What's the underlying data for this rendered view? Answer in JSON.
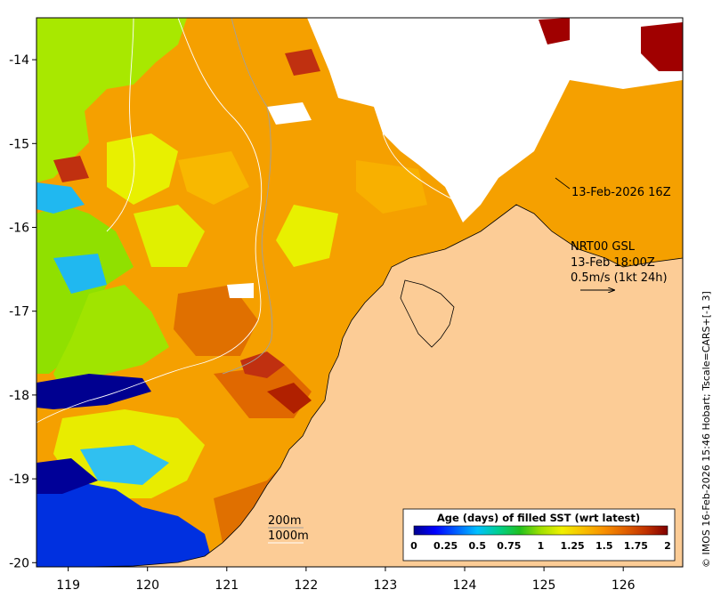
{
  "map": {
    "lon_ticks": [
      "119",
      "120",
      "121",
      "122",
      "123",
      "124",
      "125",
      "126"
    ],
    "lat_ticks": [
      "-14",
      "-15",
      "-16",
      "-17",
      "-18",
      "-19",
      "-20"
    ],
    "lon_range": [
      118.6,
      126.75
    ],
    "lat_range": [
      -20.05,
      -13.5
    ],
    "colors": {
      "land": "#fccc96",
      "cloud": "#ffffff",
      "coast": "#000000"
    }
  },
  "annotations": {
    "timestamp": "13-Feb-2026 16Z",
    "model_line1": "NRT00 GSL",
    "model_line2": "13-Feb 18:00Z",
    "model_line3": "0.5m/s (1kt 24h)",
    "isobath_1": "200m",
    "isobath_2": "1000m",
    "credit": "© IMOS 16-Feb-2026 15:46 Hobart; Tscale=CARS+[-1 3]"
  },
  "colorbar": {
    "title": "Age (days) of filled SST (wrt latest)",
    "ticks": [
      "0",
      "0.25",
      "0.5",
      "0.75",
      "1",
      "1.25",
      "1.5",
      "1.75",
      "2"
    ],
    "range": [
      0,
      2
    ],
    "stops": [
      "#00008f",
      "#0000ff",
      "#0060ff",
      "#00c0ff",
      "#00d090",
      "#20c020",
      "#a0e000",
      "#f0f000",
      "#f8c000",
      "#f89000",
      "#e06000",
      "#c03000",
      "#800000"
    ]
  }
}
